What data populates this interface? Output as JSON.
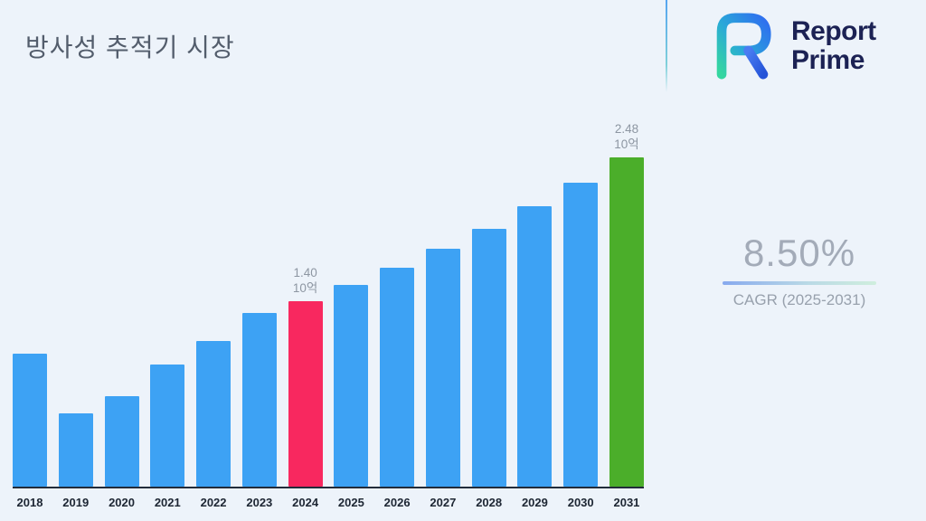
{
  "title": "방사성 추적기 시장",
  "logo": {
    "line1": "Report",
    "line2": "Prime"
  },
  "stats": {
    "cagr_value": "8.50%",
    "cagr_label": "CAGR (2025-2031)"
  },
  "chart_data": {
    "type": "bar",
    "title": "방사성 추적기 시장",
    "categories": [
      "2018",
      "2019",
      "2020",
      "2021",
      "2022",
      "2023",
      "2024",
      "2025",
      "2026",
      "2027",
      "2028",
      "2029",
      "2030",
      "2031"
    ],
    "values": [
      1.0,
      0.55,
      0.68,
      0.92,
      1.1,
      1.31,
      1.4,
      1.52,
      1.65,
      1.79,
      1.94,
      2.11,
      2.29,
      2.48
    ],
    "unit": "10억",
    "ylim": [
      0,
      2.6
    ],
    "grid": false,
    "legend": false,
    "xlabel": "",
    "ylabel": "",
    "colors": {
      "default": "#3da2f4",
      "axis": "#222c3a",
      "annotation": "#8d96a2"
    },
    "highlighted": {
      "2024": "#f8285f",
      "2031": "#4bae2a"
    },
    "annotations": [
      {
        "category": "2024",
        "lines": [
          "1.40",
          "10억"
        ]
      },
      {
        "category": "2031",
        "lines": [
          "2.48",
          "10억"
        ]
      }
    ]
  }
}
